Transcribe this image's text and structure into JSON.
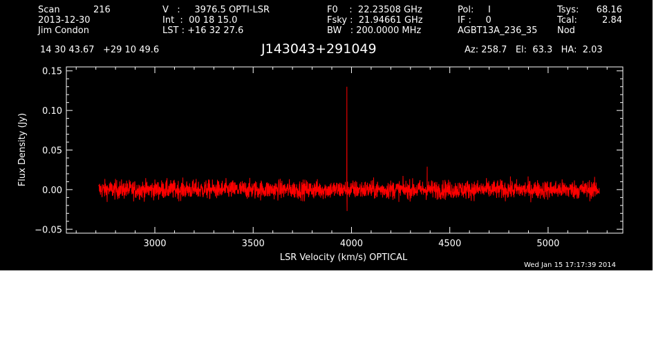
{
  "header": {
    "scan_label": "Scan",
    "scan_value": "216",
    "date": "2013-12-30",
    "observer": "Jim Condon",
    "v_line": "V   :     3976.5 OPTI-LSR",
    "int_line": "Int  :  00 18 15.0",
    "lst_line": "LST : +16 32 27.6",
    "f0_line": "F0    :  22.23508 GHz",
    "fsky_line": "Fsky :  21.94661 GHz",
    "bw_line": "BW   : 200.0000 MHz",
    "pol_line": "Pol:     I",
    "if_line": "IF :     0",
    "project": "AGBT13A_236_35",
    "tsys_label": "Tsys:",
    "tsys_value": "68.16",
    "tcal_label": "Tcal:",
    "tcal_value": "2.84",
    "mode": "Nod",
    "coords": "14 30 43.67   +29 10 49.6",
    "source": "J143043+291049",
    "az_el_ha": "Az: 258.7   El:  63.3   HA:  2.03",
    "timestamp": "Wed Jan 15 17:17:39 2014"
  },
  "chart_data": {
    "type": "line",
    "xlabel": "LSR Velocity (km/s) OPTICAL",
    "ylabel": "Flux Density (Jy)",
    "xlim": [
      2550,
      5380
    ],
    "ylim": [
      -0.055,
      0.155
    ],
    "xticks": [
      3000,
      3500,
      4000,
      4500,
      5000
    ],
    "xtick_labels": [
      "3000",
      "3500",
      "4000",
      "4500",
      "5000"
    ],
    "yticks": [
      -0.05,
      0.0,
      0.05,
      0.1,
      0.15
    ],
    "ytick_labels": [
      "−0.05",
      "0.00",
      "0.05",
      "0.10",
      "0.15"
    ],
    "grid": false,
    "series_color": "#ff0000",
    "background": "#000000",
    "x_range": [
      2715,
      5260
    ],
    "noise_rms": 0.006,
    "features": [
      {
        "x": 3976.5,
        "y": 0.13
      },
      {
        "x": 3977.5,
        "y": -0.027
      },
      {
        "x": 4385,
        "y": 0.029
      }
    ]
  }
}
